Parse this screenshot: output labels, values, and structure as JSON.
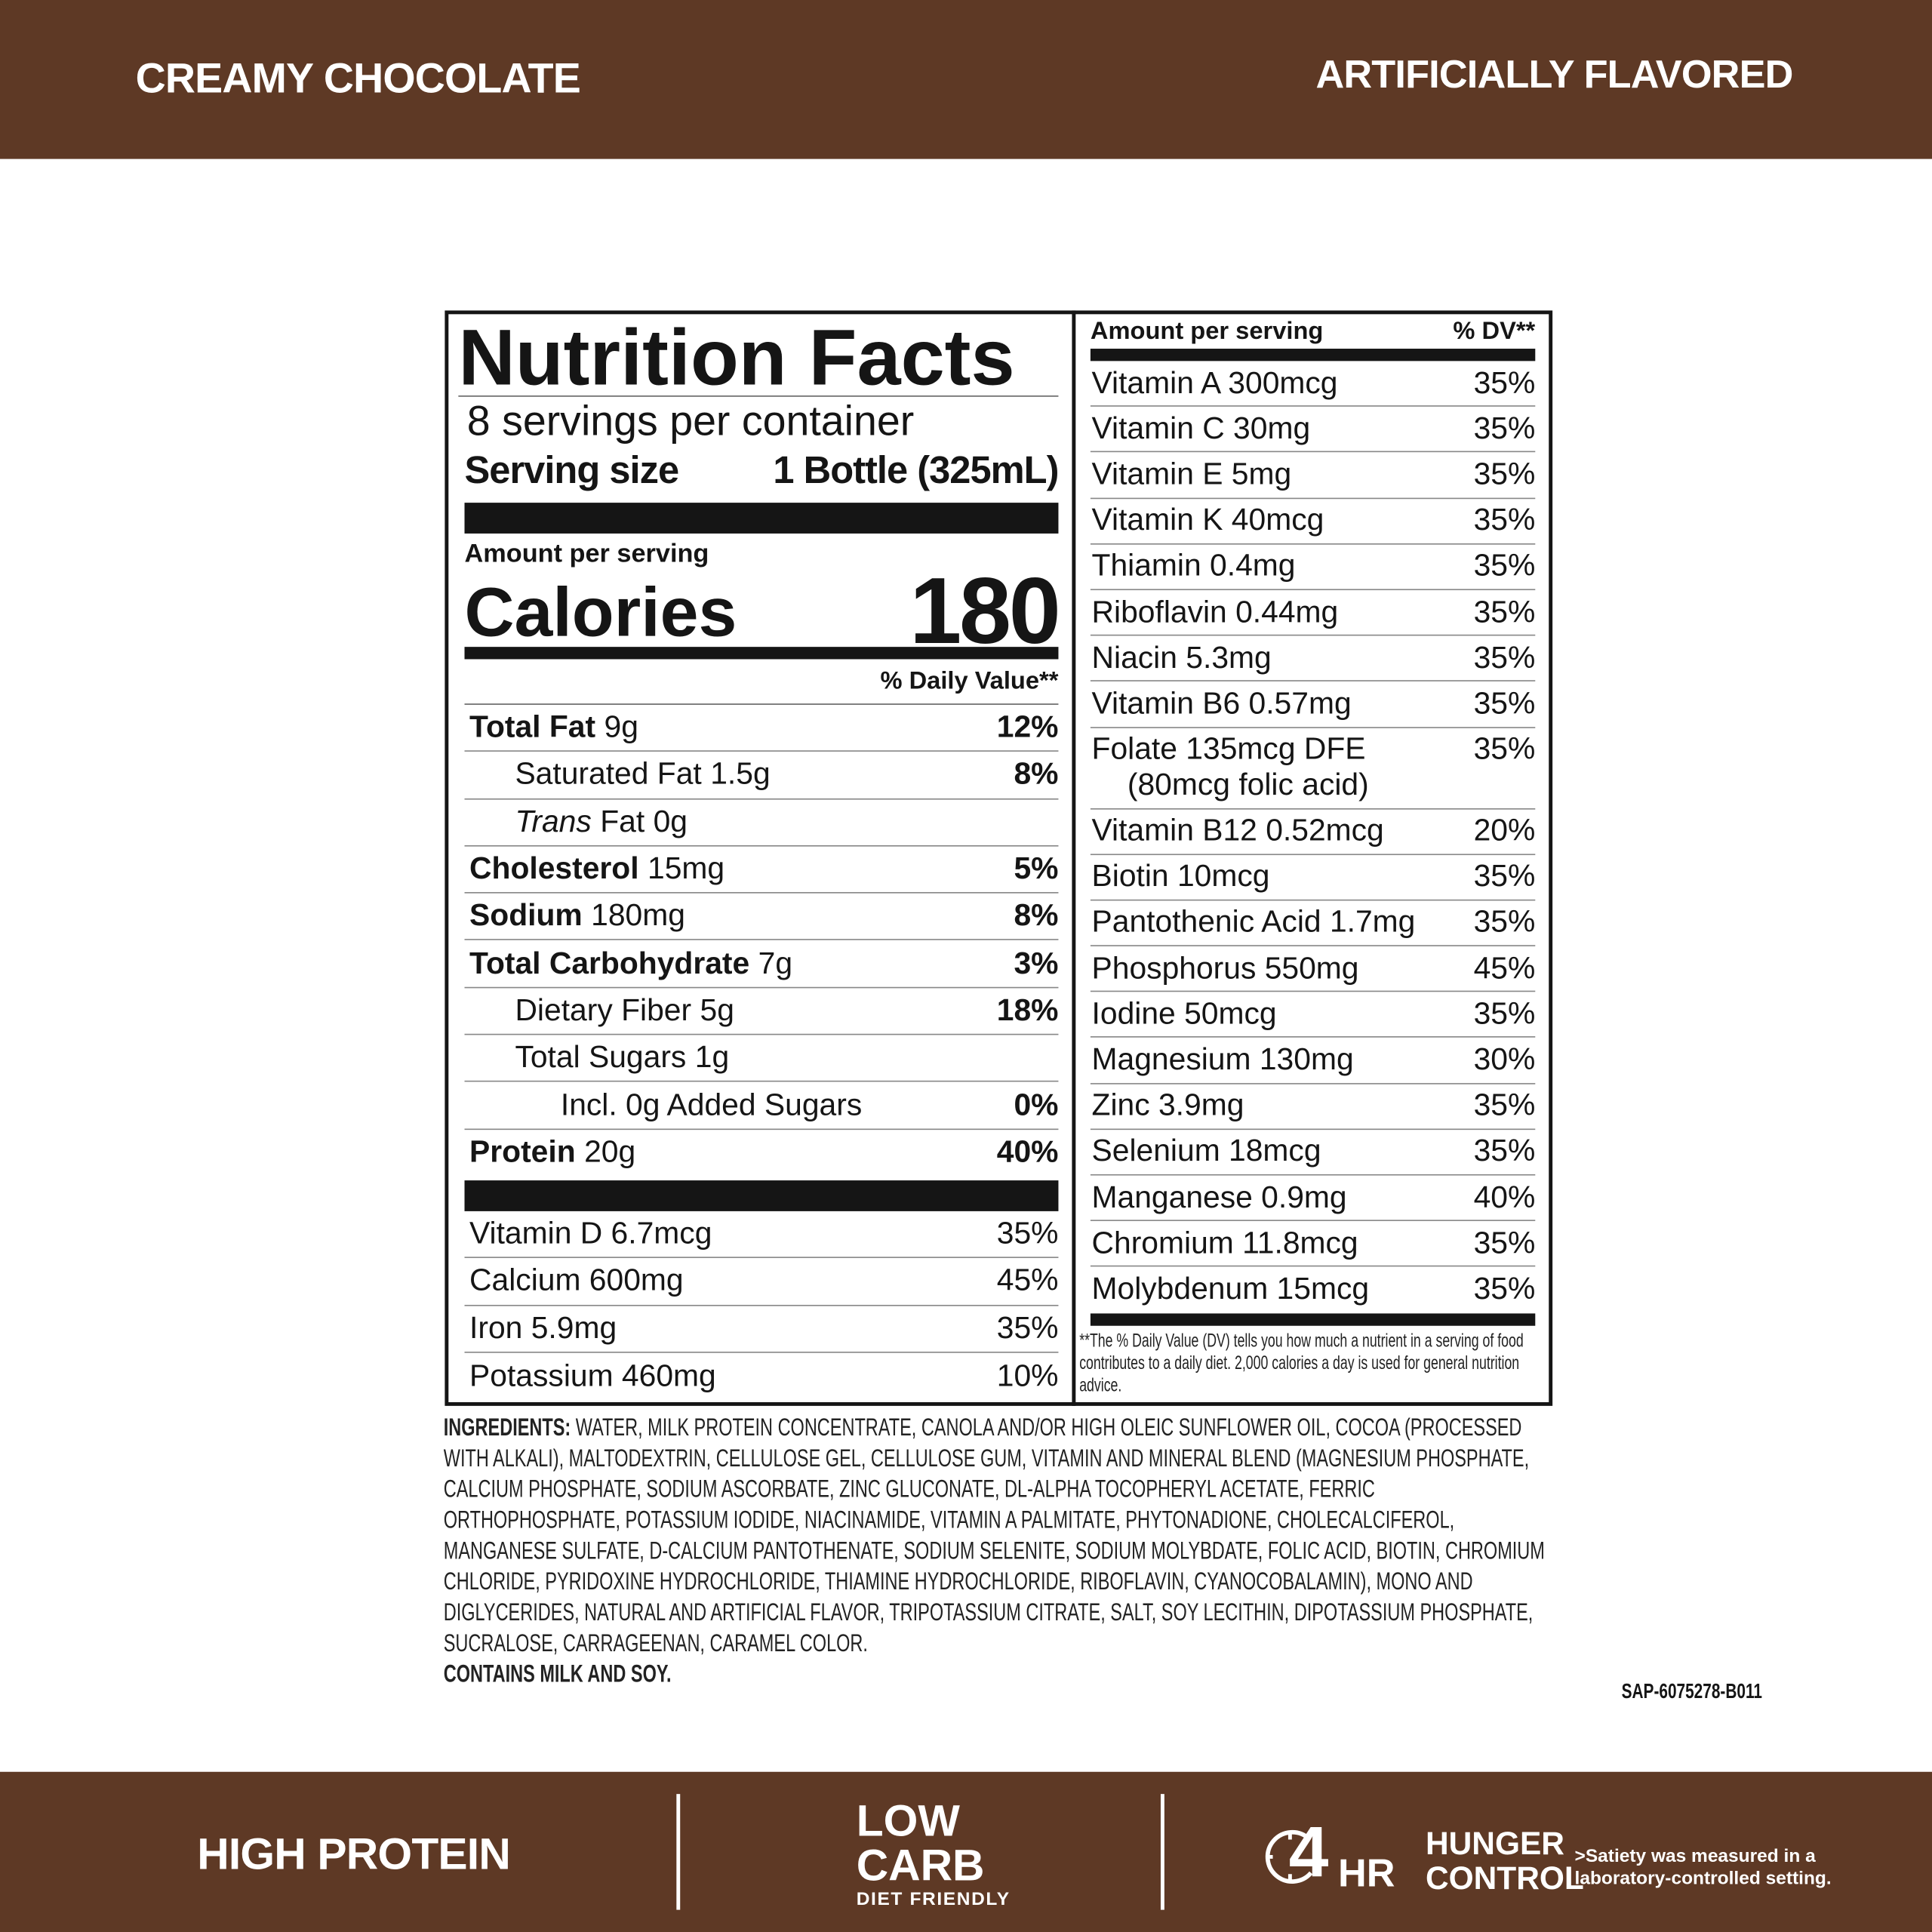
{
  "header": {
    "product": "CREAMY CHOCOLATE",
    "flavor": "ARTIFICIALLY FLAVORED"
  },
  "label": {
    "title": "Nutrition Facts",
    "servings": "8 servings per container",
    "serving_size_label": "Serving size",
    "serving_size": "1 Bottle (325mL)",
    "amount_per_serving": "Amount per serving",
    "calories_label": "Calories",
    "calories": "180",
    "daily_value_header": "% Daily Value**",
    "nutrients": [
      {
        "name": "Total Fat",
        "amount": "9g",
        "dv": "12%"
      },
      {
        "name": "Saturated Fat",
        "amount": "1.5g",
        "dv": "8%"
      },
      {
        "name_italic": "Trans",
        "name": "Fat",
        "amount": "0g"
      },
      {
        "name": "Cholesterol",
        "amount": "15mg",
        "dv": "5%"
      },
      {
        "name": "Sodium",
        "amount": "180mg",
        "dv": "8%"
      },
      {
        "name": "Total Carbohydrate",
        "amount": "7g",
        "dv": "3%"
      },
      {
        "name": "Dietary Fiber",
        "amount": "5g",
        "dv": "18%"
      },
      {
        "name": "Total Sugars",
        "amount": "1g"
      },
      {
        "name": "Incl. 0g Added Sugars",
        "dv": "0%"
      },
      {
        "name": "Protein",
        "amount": "20g",
        "dv": "40%"
      }
    ],
    "vitamins": [
      {
        "name": "Vitamin D 6.7mcg",
        "dv": "35%"
      },
      {
        "name": "Calcium 600mg",
        "dv": "45%"
      },
      {
        "name": "Iron 5.9mg",
        "dv": "35%"
      },
      {
        "name": "Potassium 460mg",
        "dv": "10%"
      }
    ],
    "right_header": {
      "amount": "Amount per serving",
      "dv": "% DV**"
    },
    "micronutrients": [
      {
        "name": "Vitamin A 300mcg",
        "dv": "35%"
      },
      {
        "name": "Vitamin C 30mg",
        "dv": "35%"
      },
      {
        "name": "Vitamin E 5mg",
        "dv": "35%"
      },
      {
        "name": "Vitamin K 40mcg",
        "dv": "35%"
      },
      {
        "name": "Thiamin 0.4mg",
        "dv": "35%"
      },
      {
        "name": "Riboflavin 0.44mg",
        "dv": "35%"
      },
      {
        "name": "Niacin 5.3mg",
        "dv": "35%"
      },
      {
        "name": "Vitamin B6 0.57mg",
        "dv": "35%"
      },
      {
        "name": "Folate 135mcg DFE",
        "note": "(80mcg folic acid)",
        "dv": "35%"
      },
      {
        "name": "Vitamin B12 0.52mcg",
        "dv": "20%"
      },
      {
        "name": "Biotin 10mcg",
        "dv": "35%"
      },
      {
        "name": "Pantothenic Acid 1.7mg",
        "dv": "35%"
      },
      {
        "name": "Phosphorus 550mg",
        "dv": "45%"
      },
      {
        "name": "Iodine 50mcg",
        "dv": "35%"
      },
      {
        "name": "Magnesium 130mg",
        "dv": "30%"
      },
      {
        "name": "Zinc 3.9mg",
        "dv": "35%"
      },
      {
        "name": "Selenium 18mcg",
        "dv": "35%"
      },
      {
        "name": "Manganese 0.9mg",
        "dv": "40%"
      },
      {
        "name": "Chromium 11.8mcg",
        "dv": "35%"
      },
      {
        "name": "Molybdenum 15mcg",
        "dv": "35%"
      }
    ],
    "footnote": "**The % Daily Value (DV) tells you how much a nutrient in a serving of food contributes to a daily diet. 2,000 calories a day is used for general nutrition advice."
  },
  "ingredients": {
    "label": "INGREDIENTS:",
    "text": "WATER, MILK PROTEIN CONCENTRATE, CANOLA AND/OR HIGH OLEIC SUNFLOWER OIL, COCOA (PROCESSED WITH ALKALI), MALTODEXTRIN, CELLULOSE GEL, CELLULOSE GUM, VITAMIN AND MINERAL BLEND (MAGNESIUM PHOSPHATE, CALCIUM PHOSPHATE, SODIUM ASCORBATE, ZINC GLUCONATE, DL-ALPHA TOCOPHERYL ACETATE, FERRIC ORTHOPHOSPHATE, POTASSIUM IODIDE, NIACINAMIDE, VITAMIN A PALMITATE, PHYTONADIONE, CHOLECALCIFEROL, MANGANESE SULFATE, D-CALCIUM PANTOTHENATE, SODIUM SELENITE, SODIUM MOLYBDATE, FOLIC ACID, BIOTIN, CHROMIUM CHLORIDE, PYRIDOXINE HYDROCHLORIDE, THIAMINE HYDROCHLORIDE, RIBOFLAVIN, CYANOCOBALAMIN), MONO AND DIGLYCERIDES, NATURAL AND ARTIFICIAL FLAVOR, TRIPOTASSIUM CITRATE, SALT, SOY LECITHIN, DIPOTASSIUM PHOSPHATE, SUCRALOSE, CARRAGEENAN, CARAMEL COLOR.",
    "allergens": "CONTAINS MILK AND SOY."
  },
  "code": "SAP-6075278-B011",
  "footer": {
    "high_protein": "HIGH PROTEIN",
    "low_carb": [
      "LOW",
      "CARB"
    ],
    "diet_friendly": "DIET FRIENDLY",
    "hunger_number": "4",
    "hunger_unit": "HR",
    "hunger_control": [
      "HUNGER",
      "CONTROL"
    ],
    "satiety_note": [
      ">Satiety was measured in a",
      "laboratory-controlled setting."
    ]
  }
}
